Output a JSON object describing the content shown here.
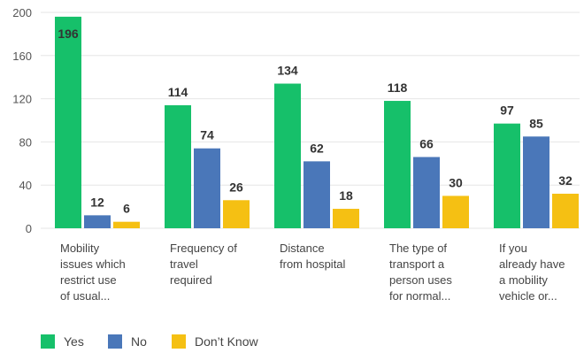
{
  "chart_data": {
    "type": "bar",
    "categories": [
      [
        "Mobility",
        "issues which",
        "restrict use",
        "of usual..."
      ],
      [
        "Frequency of",
        "travel",
        "required"
      ],
      [
        "Distance",
        "from hospital"
      ],
      [
        "The type of",
        "transport a",
        "person uses",
        "for normal..."
      ],
      [
        "If you",
        "already have",
        "a mobility",
        "vehicle or..."
      ]
    ],
    "series": [
      {
        "name": "Yes",
        "color": "#16c06a",
        "values": [
          196,
          114,
          134,
          118,
          97
        ]
      },
      {
        "name": "No",
        "color": "#4a77b9",
        "values": [
          12,
          74,
          62,
          66,
          85
        ]
      },
      {
        "name": "Don’t Know",
        "color": "#f5c013",
        "values": [
          6,
          26,
          18,
          30,
          32
        ]
      }
    ],
    "ylim": [
      0,
      200
    ],
    "yticks": [
      0,
      40,
      80,
      120,
      160,
      200
    ],
    "grid": true,
    "legend_position": "bottom-left"
  }
}
